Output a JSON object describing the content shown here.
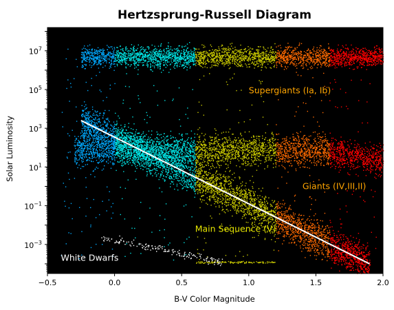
{
  "chart_data": {
    "type": "scatter",
    "title": "Hertzsprung-Russell Diagram",
    "xlabel": "B-V Color Magnitude",
    "ylabel": "Solar Luminosity",
    "xlim": [
      -0.5,
      2.0
    ],
    "ylim_log10": [
      -4.5,
      8.2
    ],
    "yscale": "log",
    "background": "#000000",
    "grid": false,
    "x_ticks": [
      {
        "value": -0.5,
        "label": "−0.5"
      },
      {
        "value": 0.0,
        "label": "0.0"
      },
      {
        "value": 0.5,
        "label": "0.5"
      },
      {
        "value": 1.0,
        "label": "1.0"
      },
      {
        "value": 1.5,
        "label": "1.5"
      },
      {
        "value": 2.0,
        "label": "2.0"
      }
    ],
    "y_ticks": [
      {
        "exp": -3,
        "label": "10",
        "sup": "−3"
      },
      {
        "exp": -1,
        "label": "10",
        "sup": "−1"
      },
      {
        "exp": 1,
        "label": "10",
        "sup": "1"
      },
      {
        "exp": 3,
        "label": "10",
        "sup": "3"
      },
      {
        "exp": 5,
        "label": "10",
        "sup": "5"
      },
      {
        "exp": 7,
        "label": "10",
        "sup": "7"
      }
    ],
    "color_bands": [
      {
        "x_from": -0.5,
        "x_to": 0.0,
        "color": "#00aaff"
      },
      {
        "x_from": 0.0,
        "x_to": 0.6,
        "color": "#00e5e5"
      },
      {
        "x_from": 0.6,
        "x_to": 1.2,
        "color": "#c8c800"
      },
      {
        "x_from": 1.2,
        "x_to": 1.6,
        "color": "#ff6a00"
      },
      {
        "x_from": 1.6,
        "x_to": 2.0,
        "color": "#ff0000"
      }
    ],
    "regions": [
      {
        "name": "supergiants",
        "x_range": [
          -0.25,
          2.0
        ],
        "log_lum_range": [
          5.8,
          7.6
        ]
      },
      {
        "name": "giants",
        "x_range": [
          -0.3,
          2.0
        ],
        "log_lum_range": [
          0.6,
          3.2
        ]
      },
      {
        "name": "main-sequence",
        "x_range": [
          -0.25,
          1.9
        ],
        "log_lum_range": [
          -4.0,
          3.4
        ]
      },
      {
        "name": "white-dwarfs",
        "x_range": [
          -0.1,
          0.8
        ],
        "log_lum_range": [
          -4.0,
          -2.5
        ],
        "color": "#ffffff"
      }
    ],
    "main_sequence_line": {
      "color": "#ffffff",
      "points": [
        {
          "x": -0.25,
          "log_lum": 3.4
        },
        {
          "x": 1.9,
          "log_lum": -4.0
        }
      ]
    },
    "annotations": [
      {
        "text": "Supergiants (Ia, Ib)",
        "x": 1.0,
        "log_lum": 4.8,
        "color": "#ffa500"
      },
      {
        "text": "Giants (IV,III,II)",
        "x": 1.4,
        "log_lum": -0.15,
        "color": "#ffa500"
      },
      {
        "text": "Main Sequence (V)",
        "x": 0.6,
        "log_lum": -2.35,
        "color": "#e6e600"
      },
      {
        "text": "White Dwarfs",
        "x": -0.4,
        "log_lum": -3.85,
        "color": "#ffffff"
      }
    ]
  }
}
